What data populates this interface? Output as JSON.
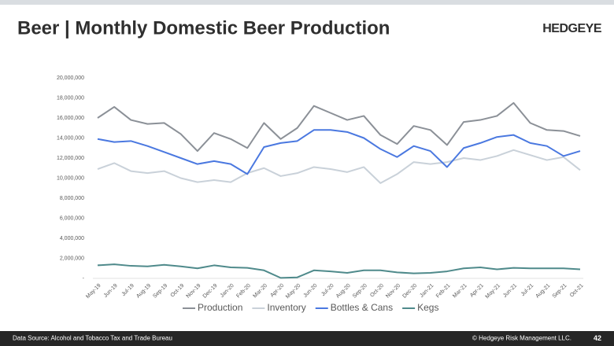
{
  "header": {
    "title": "Beer | Monthly Domestic Beer Production",
    "logo": "HEDGEYE"
  },
  "chart_data": {
    "type": "line",
    "categories": [
      "May-19",
      "Jun-19",
      "Jul-19",
      "Aug-19",
      "Sep-19",
      "Oct-19",
      "Nov-19",
      "Dec-19",
      "Jan-20",
      "Feb-20",
      "Mar-20",
      "Apr-20",
      "May-20",
      "Jun-20",
      "Jul-20",
      "Aug-20",
      "Sep-20",
      "Oct-20",
      "Nov-20",
      "Dec-20",
      "Jan-21",
      "Feb-21",
      "Mar-21",
      "Apr-21",
      "May-21",
      "Jun-21",
      "Jul-21",
      "Aug-21",
      "Sep-21",
      "Oct-21"
    ],
    "series": [
      {
        "name": "Production",
        "color": "#8b9097",
        "values": [
          16000000,
          17100000,
          15800000,
          15400000,
          15500000,
          14400000,
          12700000,
          14500000,
          13900000,
          13000000,
          15500000,
          13900000,
          15000000,
          17200000,
          16500000,
          15800000,
          16200000,
          14300000,
          13400000,
          15200000,
          14800000,
          13300000,
          15600000,
          15800000,
          16200000,
          17500000,
          15500000,
          14800000,
          14700000,
          14200000
        ]
      },
      {
        "name": "Inventory",
        "color": "#c9d1d9",
        "values": [
          10900000,
          11500000,
          10700000,
          10500000,
          10700000,
          10000000,
          9600000,
          9800000,
          9600000,
          10500000,
          11000000,
          10200000,
          10500000,
          11100000,
          10900000,
          10600000,
          11100000,
          9500000,
          10400000,
          11600000,
          11400000,
          11600000,
          12000000,
          11800000,
          12200000,
          12800000,
          12300000,
          11800000,
          12100000,
          10800000
        ]
      },
      {
        "name": "Bottles & Cans",
        "color": "#4a78e0",
        "values": [
          13900000,
          13600000,
          13700000,
          13200000,
          12600000,
          12000000,
          11400000,
          11700000,
          11400000,
          10400000,
          13100000,
          13500000,
          13700000,
          14800000,
          14800000,
          14600000,
          14000000,
          12900000,
          12100000,
          13200000,
          12700000,
          11100000,
          13000000,
          13500000,
          14100000,
          14300000,
          13500000,
          13200000,
          12200000,
          12700000
        ]
      },
      {
        "name": "Kegs",
        "color": "#4f8a8b",
        "values": [
          1300000,
          1400000,
          1250000,
          1200000,
          1350000,
          1200000,
          1000000,
          1300000,
          1100000,
          1050000,
          800000,
          50000,
          100000,
          800000,
          700000,
          550000,
          800000,
          800000,
          600000,
          500000,
          550000,
          700000,
          1000000,
          1100000,
          900000,
          1050000,
          1000000,
          1000000,
          1000000,
          900000
        ]
      }
    ],
    "ylim": [
      0,
      20000000
    ],
    "yticks": [
      {
        "value": 0,
        "label": "-"
      },
      {
        "value": 2000000,
        "label": "2,000,000"
      },
      {
        "value": 4000000,
        "label": "4,000,000"
      },
      {
        "value": 6000000,
        "label": "6,000,000"
      },
      {
        "value": 8000000,
        "label": "8,000,000"
      },
      {
        "value": 10000000,
        "label": "10,000,000"
      },
      {
        "value": 12000000,
        "label": "12,000,000"
      },
      {
        "value": 14000000,
        "label": "14,000,000"
      },
      {
        "value": 16000000,
        "label": "16,000,000"
      },
      {
        "value": 18000000,
        "label": "18,000,000"
      },
      {
        "value": 20000000,
        "label": "20,000,000"
      }
    ],
    "grid": false
  },
  "footer": {
    "source": "Data Source: Alcohol and Tobacco Tax and Trade Bureau",
    "copyright": "© Hedgeye Risk Management LLC.",
    "page": "42"
  }
}
